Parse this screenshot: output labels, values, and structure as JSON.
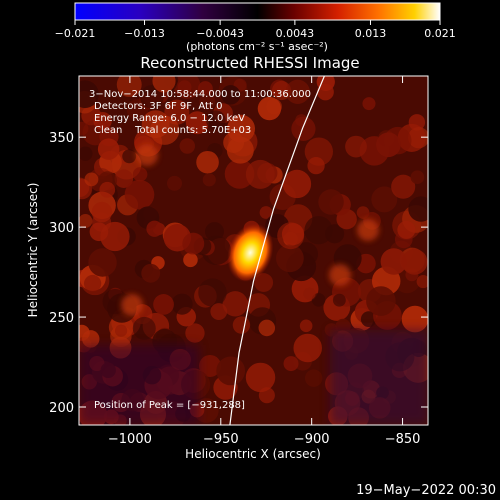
{
  "chart_data": {
    "type": "heatmap",
    "title": "Reconstructed RHESSI Image",
    "xlabel": "Heliocentric X (arcsec)",
    "ylabel": "Heliocentric Y (arcsec)",
    "xlim": [
      -1028,
      -836
    ],
    "ylim": [
      190,
      384
    ],
    "x_ticks": [
      -1000,
      -950,
      -900,
      -850
    ],
    "x_tick_labels": [
      "−1000",
      "−950",
      "−900",
      "−850"
    ],
    "y_ticks": [
      200,
      250,
      300,
      350
    ],
    "y_tick_labels": [
      "200",
      "250",
      "300",
      "350"
    ],
    "colorbar": {
      "min": -0.021,
      "max": 0.021,
      "ticks": [
        -0.021,
        -0.013,
        -0.0043,
        0.0043,
        0.013,
        0.021
      ],
      "tick_labels": [
        "−0.021",
        "−0.013",
        "−0.0043",
        "0.0043",
        "0.013",
        "0.021"
      ],
      "unit_label": "(photons cm⁻² s⁻¹ asec⁻²)",
      "colors": [
        "#0000ff",
        "#3a0060",
        "#000000",
        "#4a0000",
        "#b01000",
        "#ff6000",
        "#ffcc00",
        "#ffffff"
      ]
    },
    "annotations": [
      "3−Nov−2014 10:58:44.000 to 11:00:36.000",
      "Detectors: 3F 6F 9F, Att 0",
      "Energy Range: 6.0 − 12.0 keV",
      "Clean    Total counts: 5.70E+03"
    ],
    "peak_label": "Position of Peak = [−931,288]",
    "peak": [
      -931,
      288
    ],
    "limb_curve": [
      [
        -945,
        190
      ],
      [
        -940,
        230
      ],
      [
        -932,
        270
      ],
      [
        -921,
        310
      ],
      [
        -905,
        355
      ],
      [
        -893,
        384
      ]
    ],
    "colors": {
      "limb": "#ffffff",
      "background": "#000000",
      "text": "#ffffff"
    }
  },
  "footer": {
    "timestamp": "19−May−2022 00:30"
  }
}
